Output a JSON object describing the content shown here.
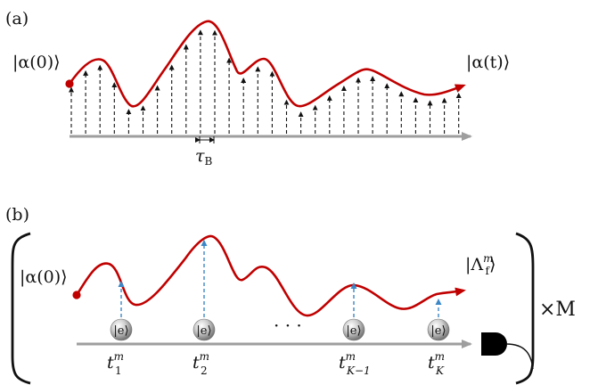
{
  "panel_a": {
    "label": "(a)",
    "initial_state": "|α(0)⟩",
    "final_state": "|α(t)⟩",
    "interval": {
      "symbol": "τ",
      "subscript": "B"
    }
  },
  "panel_b": {
    "label": "(b)",
    "initial_state": "|α(0)⟩",
    "final_state": {
      "main": "|Λ",
      "sup": "m",
      "sub": "f",
      "close": "⟩"
    },
    "repeat_label": "×M",
    "excited_state": "|e⟩",
    "ellipsis": "· · ·",
    "times": [
      {
        "base": "t",
        "sup": "m",
        "sub": "1"
      },
      {
        "base": "t",
        "sup": "m",
        "sub": "2"
      },
      {
        "base": "t",
        "sup": "m",
        "sub": "K−1"
      },
      {
        "base": "t",
        "sup": "m",
        "sub": "K"
      }
    ]
  },
  "colors": {
    "trajectory": "#c00000",
    "time_axis": "#9e9e9e",
    "jump_arrow": "#3b86c6",
    "dashed": "#111111",
    "detector": "#000000"
  }
}
